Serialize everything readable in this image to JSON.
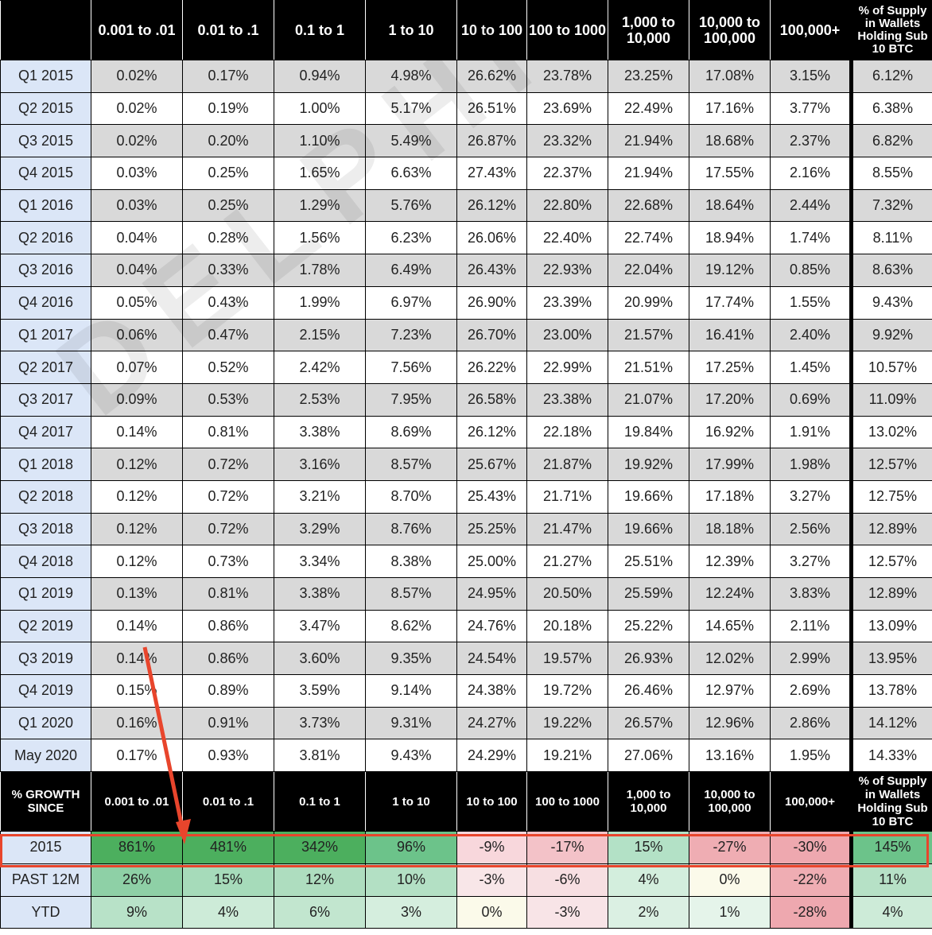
{
  "header": {
    "corner": "",
    "columns": [
      "0.001 to .01",
      "0.01 to .1",
      "0.1 to 1",
      "1 to 10",
      "10 to 100",
      "100 to 1000",
      "1,000 to 10,000",
      "10,000 to 100,000",
      "100,000+",
      "% of Supply in Wallets Holding Sub 10 BTC"
    ]
  },
  "rows": [
    {
      "label": "Q1 2015",
      "values": [
        "0.02%",
        "0.17%",
        "0.94%",
        "4.98%",
        "26.62%",
        "23.78%",
        "23.25%",
        "17.08%",
        "3.15%",
        "6.12%"
      ]
    },
    {
      "label": "Q2 2015",
      "values": [
        "0.02%",
        "0.19%",
        "1.00%",
        "5.17%",
        "26.51%",
        "23.69%",
        "22.49%",
        "17.16%",
        "3.77%",
        "6.38%"
      ]
    },
    {
      "label": "Q3 2015",
      "values": [
        "0.02%",
        "0.20%",
        "1.10%",
        "5.49%",
        "26.87%",
        "23.32%",
        "21.94%",
        "18.68%",
        "2.37%",
        "6.82%"
      ]
    },
    {
      "label": "Q4 2015",
      "values": [
        "0.03%",
        "0.25%",
        "1.65%",
        "6.63%",
        "27.43%",
        "22.37%",
        "21.94%",
        "17.55%",
        "2.16%",
        "8.55%"
      ]
    },
    {
      "label": "Q1 2016",
      "values": [
        "0.03%",
        "0.25%",
        "1.29%",
        "5.76%",
        "26.12%",
        "22.80%",
        "22.68%",
        "18.64%",
        "2.44%",
        "7.32%"
      ]
    },
    {
      "label": "Q2 2016",
      "values": [
        "0.04%",
        "0.28%",
        "1.56%",
        "6.23%",
        "26.06%",
        "22.40%",
        "22.74%",
        "18.94%",
        "1.74%",
        "8.11%"
      ]
    },
    {
      "label": "Q3 2016",
      "values": [
        "0.04%",
        "0.33%",
        "1.78%",
        "6.49%",
        "26.43%",
        "22.93%",
        "22.04%",
        "19.12%",
        "0.85%",
        "8.63%"
      ]
    },
    {
      "label": "Q4 2016",
      "values": [
        "0.05%",
        "0.43%",
        "1.99%",
        "6.97%",
        "26.90%",
        "23.39%",
        "20.99%",
        "17.74%",
        "1.55%",
        "9.43%"
      ]
    },
    {
      "label": "Q1 2017",
      "values": [
        "0.06%",
        "0.47%",
        "2.15%",
        "7.23%",
        "26.70%",
        "23.00%",
        "21.57%",
        "16.41%",
        "2.40%",
        "9.92%"
      ]
    },
    {
      "label": "Q2 2017",
      "values": [
        "0.07%",
        "0.52%",
        "2.42%",
        "7.56%",
        "26.22%",
        "22.99%",
        "21.51%",
        "17.25%",
        "1.45%",
        "10.57%"
      ]
    },
    {
      "label": "Q3 2017",
      "values": [
        "0.09%",
        "0.53%",
        "2.53%",
        "7.95%",
        "26.58%",
        "23.38%",
        "21.07%",
        "17.20%",
        "0.69%",
        "11.09%"
      ]
    },
    {
      "label": "Q4 2017",
      "values": [
        "0.14%",
        "0.81%",
        "3.38%",
        "8.69%",
        "26.12%",
        "22.18%",
        "19.84%",
        "16.92%",
        "1.91%",
        "13.02%"
      ]
    },
    {
      "label": "Q1 2018",
      "values": [
        "0.12%",
        "0.72%",
        "3.16%",
        "8.57%",
        "25.67%",
        "21.87%",
        "19.92%",
        "17.99%",
        "1.98%",
        "12.57%"
      ]
    },
    {
      "label": "Q2 2018",
      "values": [
        "0.12%",
        "0.72%",
        "3.21%",
        "8.70%",
        "25.43%",
        "21.71%",
        "19.66%",
        "17.18%",
        "3.27%",
        "12.75%"
      ]
    },
    {
      "label": "Q3 2018",
      "values": [
        "0.12%",
        "0.72%",
        "3.29%",
        "8.76%",
        "25.25%",
        "21.47%",
        "19.66%",
        "18.18%",
        "2.56%",
        "12.89%"
      ]
    },
    {
      "label": "Q4 2018",
      "values": [
        "0.12%",
        "0.73%",
        "3.34%",
        "8.38%",
        "25.00%",
        "21.27%",
        "25.51%",
        "12.39%",
        "3.27%",
        "12.57%"
      ]
    },
    {
      "label": "Q1 2019",
      "values": [
        "0.13%",
        "0.81%",
        "3.38%",
        "8.57%",
        "24.95%",
        "20.50%",
        "25.59%",
        "12.24%",
        "3.83%",
        "12.89%"
      ]
    },
    {
      "label": "Q2 2019",
      "values": [
        "0.14%",
        "0.86%",
        "3.47%",
        "8.62%",
        "24.76%",
        "20.18%",
        "25.22%",
        "14.65%",
        "2.11%",
        "13.09%"
      ]
    },
    {
      "label": "Q3 2019",
      "values": [
        "0.14%",
        "0.86%",
        "3.60%",
        "9.35%",
        "24.54%",
        "19.57%",
        "26.93%",
        "12.02%",
        "2.99%",
        "13.95%"
      ]
    },
    {
      "label": "Q4 2019",
      "values": [
        "0.15%",
        "0.89%",
        "3.59%",
        "9.14%",
        "24.38%",
        "19.72%",
        "26.46%",
        "12.97%",
        "2.69%",
        "13.78%"
      ]
    },
    {
      "label": "Q1 2020",
      "values": [
        "0.16%",
        "0.91%",
        "3.73%",
        "9.31%",
        "24.27%",
        "19.22%",
        "26.57%",
        "12.96%",
        "2.86%",
        "14.12%"
      ]
    },
    {
      "label": "May 2020",
      "values": [
        "0.17%",
        "0.93%",
        "3.81%",
        "9.43%",
        "24.29%",
        "19.21%",
        "27.06%",
        "13.16%",
        "1.95%",
        "14.33%"
      ]
    }
  ],
  "growth_header": {
    "corner": "% GROWTH SINCE",
    "columns": [
      "0.001 to .01",
      "0.01 to .1",
      "0.1 to 1",
      "1 to 10",
      "10 to 100",
      "100 to 1000",
      "1,000 to 10,000",
      "10,000 to 100,000",
      "100,000+",
      "% of Supply in Wallets Holding Sub 10 BTC"
    ]
  },
  "growth_rows": [
    {
      "label": "2015",
      "values": [
        "861%",
        "481%",
        "342%",
        "96%",
        "-9%",
        "-17%",
        "15%",
        "-27%",
        "-30%",
        "145%"
      ],
      "colors": [
        "#4caf5e",
        "#4caf5e",
        "#4caf5e",
        "#6cc38a",
        "#f8d7dc",
        "#f3c2c8",
        "#b3e1c6",
        "#efadb3",
        "#eea8af",
        "#6cc38a"
      ]
    },
    {
      "label": "PAST 12M",
      "values": [
        "26%",
        "15%",
        "12%",
        "10%",
        "-3%",
        "-6%",
        "4%",
        "0%",
        "-22%",
        "11%"
      ],
      "colors": [
        "#8ed0a6",
        "#a6dbba",
        "#aeddbf",
        "#b3e0c4",
        "#f8e6e8",
        "#f7dfe2",
        "#d3eedd",
        "#fbfaea",
        "#efadb3",
        "#b6e1c6"
      ]
    },
    {
      "label": "YTD",
      "values": [
        "9%",
        "4%",
        "6%",
        "3%",
        "0%",
        "-3%",
        "2%",
        "1%",
        "-28%",
        "4%"
      ],
      "colors": [
        "#b8e2c8",
        "#cdebd8",
        "#c2e6cf",
        "#d5eede",
        "#fbfaea",
        "#f8e4e7",
        "#dbf0e3",
        "#e5f4ea",
        "#eea8af",
        "#cdebd8"
      ]
    }
  ],
  "watermark": "DELPHI DIGITAL"
}
